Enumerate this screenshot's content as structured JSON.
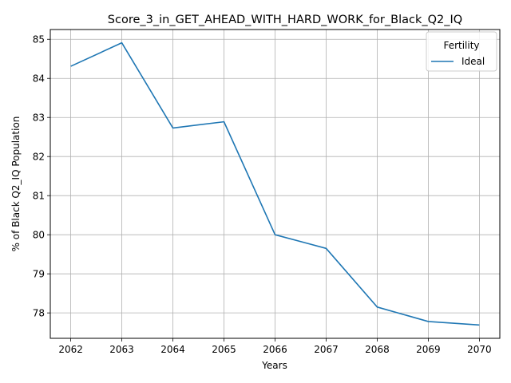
{
  "chart_data": {
    "type": "line",
    "title": "Score_3_in_GET_AHEAD_WITH_HARD_WORK_for_Black_Q2_IQ",
    "xlabel": "Years",
    "ylabel": "% of Black Q2_IQ Population",
    "x": [
      2062,
      2063,
      2064,
      2065,
      2066,
      2067,
      2068,
      2069,
      2070
    ],
    "xlim": [
      2061.6,
      2070.4
    ],
    "ylim": [
      77.35,
      85.25
    ],
    "yticks": [
      78,
      79,
      80,
      81,
      82,
      83,
      84,
      85
    ],
    "grid": true,
    "legend": {
      "title": "Fertility",
      "placement": "top-right"
    },
    "series": [
      {
        "name": "Ideal",
        "color": "#1f77b4",
        "values": [
          84.31,
          84.91,
          82.73,
          82.89,
          80.0,
          79.65,
          78.15,
          77.78,
          77.69
        ]
      }
    ]
  }
}
